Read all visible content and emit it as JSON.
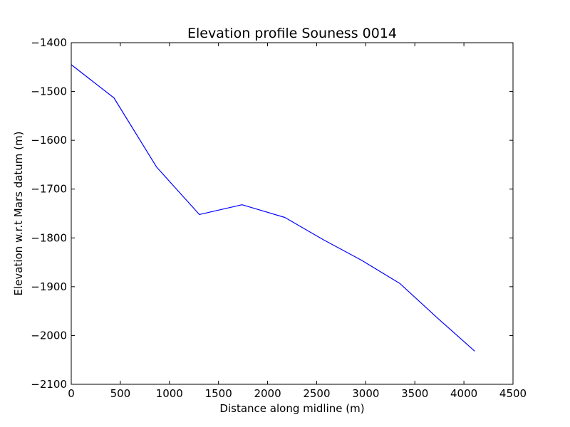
{
  "chart_data": {
    "type": "line",
    "title": "Elevation profile Souness 0014",
    "xlabel": "Distance along midline (m)",
    "ylabel": "Elevation w.r.t Mars datum (m)",
    "xlim": [
      0,
      4500
    ],
    "ylim": [
      -2100,
      -1400
    ],
    "xticks": [
      0,
      500,
      1000,
      1500,
      2000,
      2500,
      3000,
      3500,
      4000,
      4500
    ],
    "yticks": [
      -1400,
      -1500,
      -1600,
      -1700,
      -1800,
      -1900,
      -2000,
      -2100
    ],
    "xtick_labels": [
      "0",
      "500",
      "1000",
      "1500",
      "2000",
      "2500",
      "3000",
      "3500",
      "4000",
      "4500"
    ],
    "ytick_labels": [
      "−1400",
      "−1500",
      "−1600",
      "−1700",
      "−1800",
      "−1900",
      "−2000",
      "−2100"
    ],
    "grid": false,
    "series": [
      {
        "color": "#0000ff",
        "x": [
          0,
          435,
          870,
          1305,
          1740,
          2175,
          2570,
          2950,
          3345,
          3740,
          4110
        ],
        "y": [
          -1445,
          -1513,
          -1655,
          -1752,
          -1732,
          -1758,
          -1804,
          -1845,
          -1893,
          -1966,
          -2032
        ]
      }
    ]
  }
}
